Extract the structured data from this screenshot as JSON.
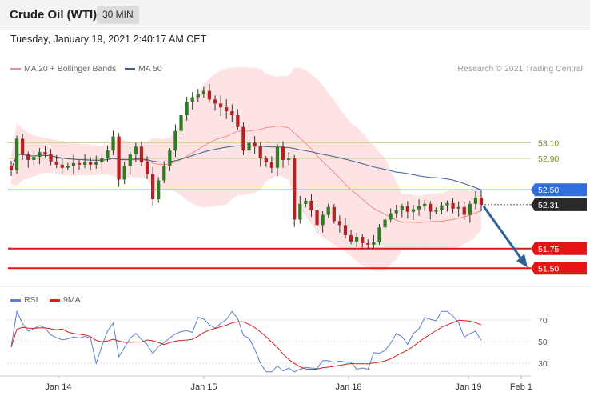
{
  "header": {
    "title": "Crude Oil (WTI)",
    "interval": "30 MIN"
  },
  "timestamp": "Tuesday, January 19, 2021 2:40:17 AM CET",
  "legend": {
    "ma20": {
      "label": "MA 20 + Bollinger Bands",
      "color": "#f28b8b"
    },
    "ma50": {
      "label": "MA 50",
      "color": "#3b5f8f"
    }
  },
  "credit": "Research © 2021 Trading Central",
  "rsi_legend": {
    "rsi": {
      "label": "RSI",
      "color": "#5b7fd4"
    },
    "ma9": {
      "label": "9MA",
      "color": "#d62020"
    }
  },
  "levels": [
    {
      "value": 53.1,
      "label": "53.10",
      "kind": "line",
      "color": "#c8d28a",
      "text_color": "#7a8a1a"
    },
    {
      "value": 52.9,
      "label": "52.90",
      "kind": "line",
      "color": "#c8d28a",
      "text_color": "#7a8a1a"
    },
    {
      "value": 52.5,
      "label": "52.50",
      "kind": "badge",
      "color": "#2f6ee0"
    },
    {
      "value": 52.31,
      "label": "52.31",
      "kind": "price",
      "color": "#2a2a2a"
    },
    {
      "value": 51.75,
      "label": "51.75",
      "kind": "badge",
      "color": "#e51515"
    },
    {
      "value": 51.5,
      "label": "51.50",
      "kind": "badge",
      "color": "#e51515"
    }
  ],
  "x_labels": [
    "Jan 14",
    "Jan 15",
    "Jan 18",
    "Jan 19",
    "Feb 1"
  ],
  "rsi_ticks": [
    "70",
    "50",
    "30"
  ],
  "chart_data": {
    "type": "candlestick",
    "instrument": "Crude Oil (WTI)",
    "timeframe": "30 MIN",
    "ylim": [
      51.35,
      53.95
    ],
    "close": [
      52.75,
      53.15,
      52.95,
      52.88,
      52.92,
      52.98,
      52.95,
      52.86,
      52.82,
      52.78,
      52.8,
      52.84,
      52.82,
      52.85,
      52.82,
      52.85,
      52.9,
      53.0,
      53.18,
      52.63,
      52.8,
      52.95,
      53.05,
      52.85,
      52.7,
      52.38,
      52.62,
      52.8,
      53.0,
      53.25,
      53.45,
      53.62,
      53.68,
      53.72,
      53.76,
      53.65,
      53.6,
      53.55,
      53.5,
      53.45,
      53.3,
      53.0,
      53.1,
      53.05,
      52.9,
      52.85,
      52.78,
      53.05,
      52.88,
      52.9,
      52.12,
      52.32,
      52.36,
      52.24,
      52.05,
      52.18,
      52.28,
      52.1,
      52.05,
      51.92,
      51.84,
      51.9,
      51.82,
      51.8,
      51.83,
      52.02,
      52.12,
      52.2,
      52.24,
      52.29,
      52.22,
      52.25,
      52.29,
      52.32,
      52.22,
      52.24,
      52.3,
      52.33,
      52.26,
      52.28,
      52.18,
      52.32,
      52.4,
      52.31
    ],
    "rsi_period": 14,
    "rsi_ticks": [
      70,
      50,
      30
    ],
    "x_labels": [
      "Jan 14",
      "Jan 15",
      "Jan 18",
      "Jan 19",
      "Feb 1"
    ],
    "indicators": [
      "MA 20 + Bollinger Bands",
      "MA 50"
    ],
    "levels": [
      53.1,
      52.9,
      52.5,
      52.31,
      51.75,
      51.5
    ],
    "projection": {
      "from": 52.31,
      "to": 51.5,
      "direction": "down"
    }
  }
}
